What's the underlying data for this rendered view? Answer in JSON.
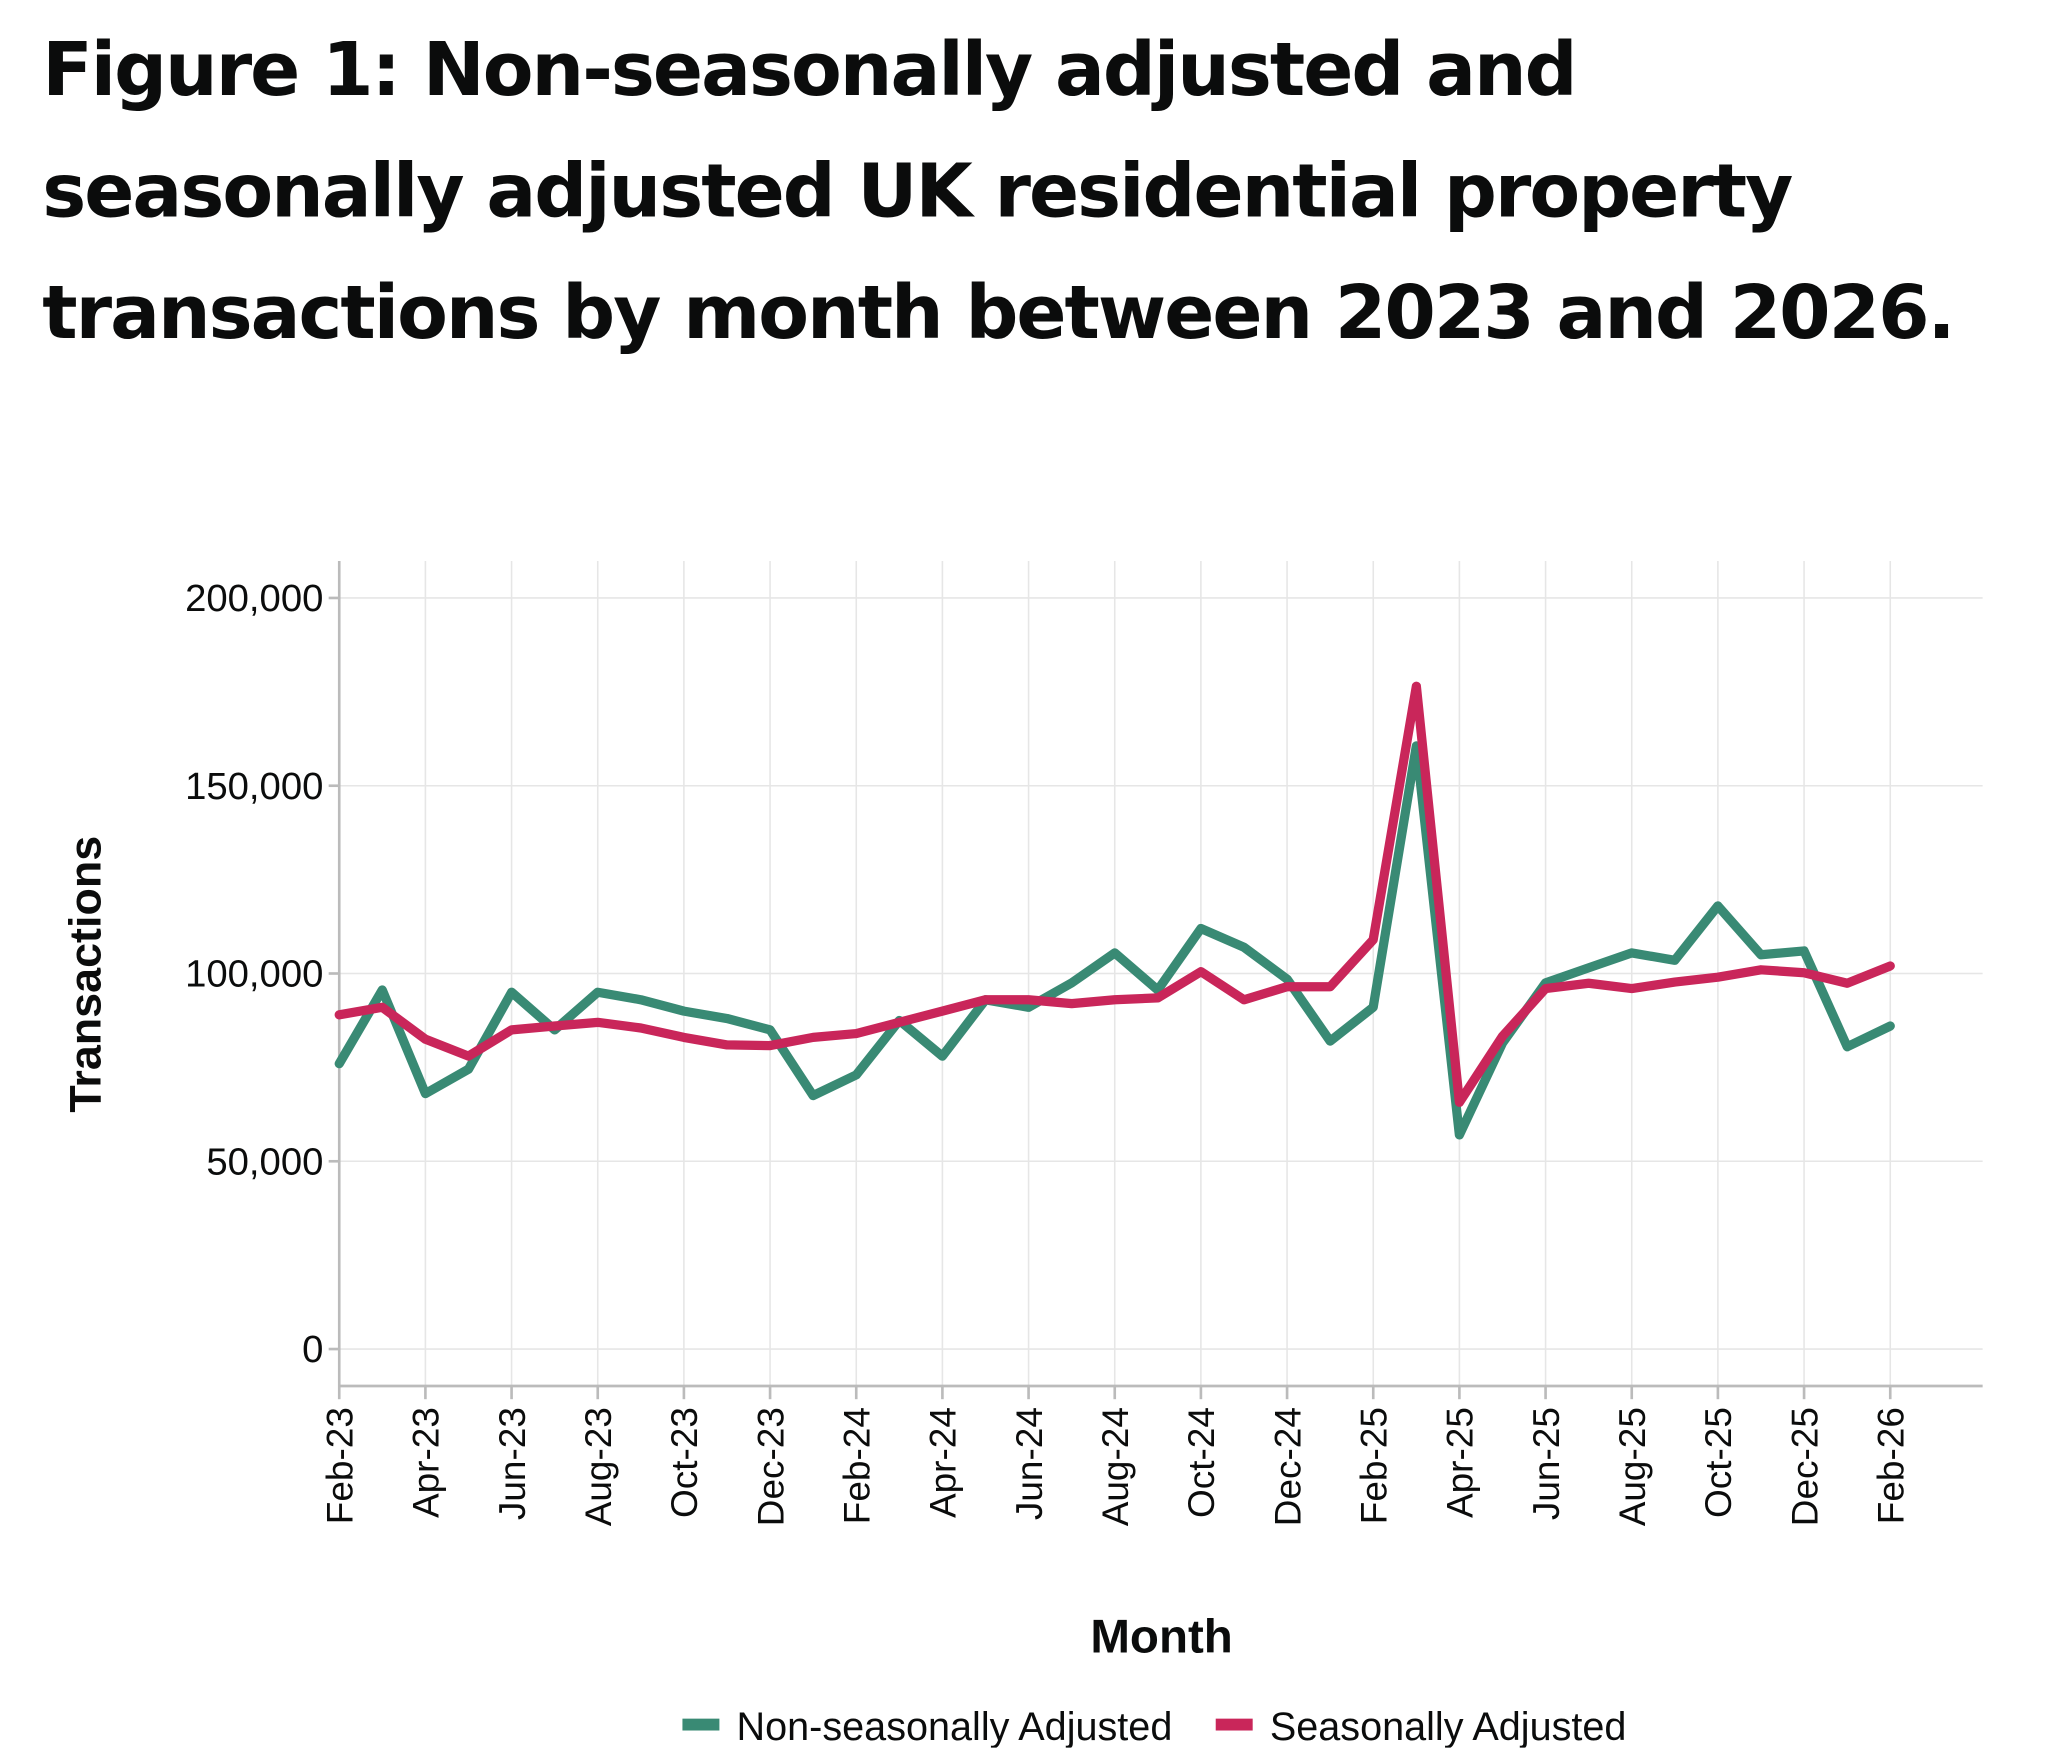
{
  "chart_data": {
    "type": "line",
    "title": "Figure 1: Non-seasonally adjusted and seasonally adjusted UK residential property transactions by month between 2023 and 2026.",
    "xlabel": "Month",
    "ylabel": "Transactions",
    "ylim": [
      0,
      200000
    ],
    "yticks": [
      "0",
      "50,000",
      "100,000",
      "150,000",
      "200,000"
    ],
    "ytick_values": [
      0,
      50000,
      100000,
      150000,
      200000
    ],
    "grid": true,
    "legend": "bottom",
    "x": [
      "Feb-23",
      "Mar-23",
      "Apr-23",
      "May-23",
      "Jun-23",
      "Jul-23",
      "Aug-23",
      "Sep-23",
      "Oct-23",
      "Nov-23",
      "Dec-23",
      "Jan-24",
      "Feb-24",
      "Mar-24",
      "Apr-24",
      "May-24",
      "Jun-24",
      "Jul-24",
      "Aug-24",
      "Sep-24",
      "Oct-24",
      "Nov-24",
      "Dec-24",
      "Jan-25",
      "Feb-25",
      "Mar-25",
      "Apr-25",
      "May-25",
      "Jun-25",
      "Jul-25",
      "Aug-25",
      "Sep-25",
      "Oct-25",
      "Nov-25",
      "Dec-25",
      "Jan-26",
      "Feb-26"
    ],
    "xticks": [
      "Feb-23",
      "Apr-23",
      "Jun-23",
      "Aug-23",
      "Oct-23",
      "Dec-23",
      "Feb-24",
      "Apr-24",
      "Jun-24",
      "Aug-24",
      "Oct-24",
      "Dec-24",
      "Feb-25",
      "Apr-25",
      "Jun-25",
      "Aug-25",
      "Oct-25",
      "Dec-25",
      "Feb-26"
    ],
    "series": [
      {
        "name": "Non-seasonally Adjusted",
        "color": "#398a74",
        "values": [
          76000,
          95600,
          68000,
          74500,
          95000,
          85000,
          95000,
          93000,
          90000,
          88000,
          85000,
          67500,
          73000,
          87500,
          78000,
          93000,
          91000,
          97500,
          105500,
          95600,
          112000,
          107000,
          98500,
          82000,
          91000,
          160600,
          57000,
          81500,
          97500,
          101500,
          105500,
          103500,
          118000,
          105000,
          106000,
          80500,
          86000
        ]
      },
      {
        "name": "Seasonally Adjusted",
        "color": "#c9265a",
        "values": [
          89000,
          91000,
          82500,
          78000,
          85000,
          86000,
          87000,
          85500,
          83000,
          81000,
          80800,
          83000,
          84000,
          87000,
          90000,
          93000,
          93000,
          92000,
          93000,
          93500,
          100500,
          93000,
          96500,
          96500,
          109000,
          176500,
          65700,
          83300,
          96000,
          97400,
          96000,
          97700,
          99000,
          101000,
          100200,
          97400,
          102000
        ]
      }
    ]
  }
}
